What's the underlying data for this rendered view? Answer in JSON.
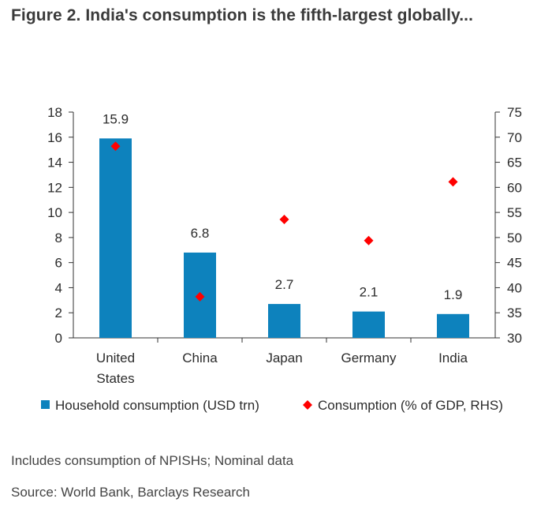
{
  "title": "Figure 2. India's consumption is the fifth-largest globally...",
  "chart_data": {
    "type": "bar",
    "categories": [
      [
        "United",
        "States"
      ],
      [
        "China"
      ],
      [
        "Japan"
      ],
      [
        "Germany"
      ],
      [
        "India"
      ]
    ],
    "series": [
      {
        "name": "Household consumption (USD trn)",
        "kind": "bar",
        "axis": "left",
        "values": [
          15.9,
          6.8,
          2.7,
          2.1,
          1.9
        ],
        "labels": [
          "15.9",
          "6.8",
          "2.7",
          "2.1",
          "1.9"
        ]
      },
      {
        "name": "Consumption (% of GDP, RHS)",
        "kind": "scatter",
        "axis": "right",
        "values": [
          68.2,
          38.2,
          53.6,
          49.4,
          61.1
        ]
      }
    ],
    "ylim": [
      0,
      18
    ],
    "yticks": [
      0,
      2,
      4,
      6,
      8,
      10,
      12,
      14,
      16,
      18
    ],
    "y2lim": [
      30,
      75
    ],
    "y2ticks": [
      30,
      35,
      40,
      45,
      50,
      55,
      60,
      65,
      70,
      75
    ],
    "legend": [
      "Household consumption (USD trn)",
      "Consumption (% of GDP, RHS)"
    ],
    "legend_position": "bottom",
    "grid": false
  },
  "notes": {
    "line1": "Includes consumption of NPISHs; Nominal data",
    "line2": "Source: World Bank, Barclays Research"
  },
  "colors": {
    "bar": "#0d82bd",
    "marker": "#ff0000",
    "axis": "#333333",
    "text": "#2b2b2b"
  }
}
